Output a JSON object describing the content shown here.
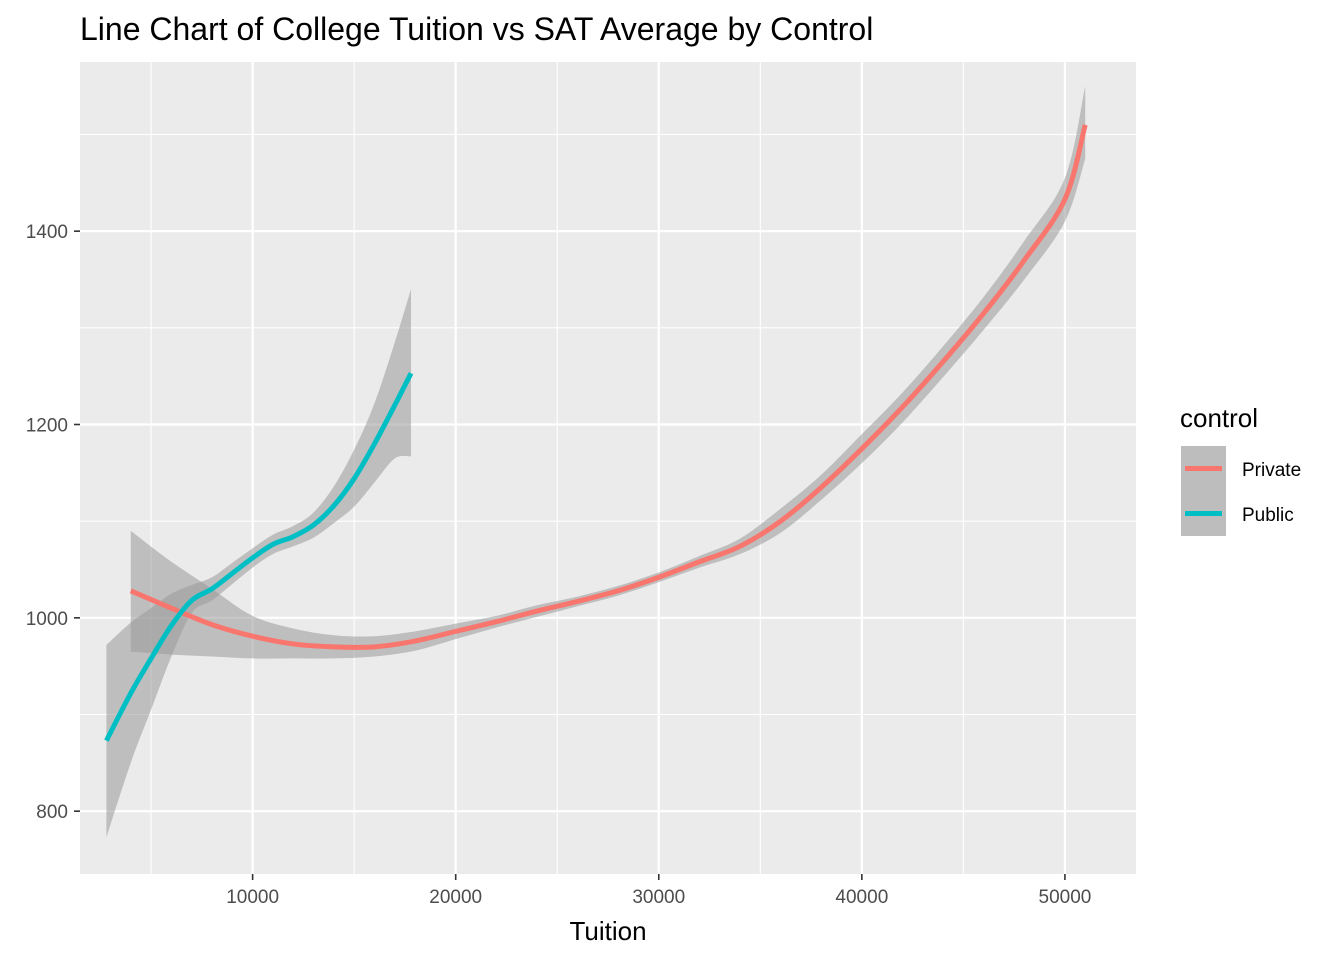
{
  "chart_data": {
    "type": "line",
    "title": "Line Chart of College Tuition vs SAT Average by Control",
    "xlabel": "Tuition",
    "ylabel": "",
    "xlim": [
      1500,
      53500
    ],
    "ylim": [
      735,
      1575
    ],
    "x_ticks": [
      10000,
      20000,
      30000,
      40000,
      50000
    ],
    "x_tick_labels": [
      "10000",
      "20000",
      "30000",
      "40000",
      "50000"
    ],
    "y_ticks": [
      800,
      1000,
      1200,
      1400
    ],
    "y_tick_labels": [
      "800",
      "1000",
      "1200",
      "1400"
    ],
    "grid": true,
    "legend": {
      "title": "control",
      "position": "right"
    },
    "series": [
      {
        "name": "Private",
        "color": "#F8766D",
        "x": [
          4000,
          6000,
          8000,
          10000,
          12000,
          14000,
          16000,
          18000,
          20000,
          22000,
          24000,
          26000,
          28000,
          30000,
          32000,
          34000,
          36000,
          38000,
          40000,
          42000,
          44000,
          46000,
          48000,
          50000,
          51000
        ],
        "y": [
          1028,
          1010,
          993,
          981,
          973,
          970,
          970,
          976,
          986,
          996,
          1007,
          1017,
          1028,
          1042,
          1058,
          1074,
          1100,
          1135,
          1175,
          1218,
          1265,
          1315,
          1370,
          1433,
          1510
        ],
        "lower": [
          965,
          962,
          960,
          958,
          958,
          958,
          960,
          966,
          978,
          990,
          1001,
          1012,
          1023,
          1037,
          1052,
          1066,
          1088,
          1122,
          1160,
          1202,
          1249,
          1298,
          1350,
          1410,
          1475
        ],
        "upper": [
          1090,
          1058,
          1030,
          1002,
          989,
          982,
          981,
          986,
          994,
          1002,
          1013,
          1022,
          1033,
          1047,
          1064,
          1082,
          1113,
          1148,
          1190,
          1233,
          1281,
          1332,
          1390,
          1455,
          1550
        ]
      },
      {
        "name": "Public",
        "color": "#00BFC4",
        "x": [
          2800,
          4000,
          5000,
          6000,
          7000,
          8000,
          9000,
          10000,
          11000,
          12000,
          13000,
          14000,
          15000,
          16000,
          17000,
          17800
        ],
        "y": [
          873,
          922,
          958,
          992,
          1018,
          1030,
          1046,
          1062,
          1076,
          1084,
          1096,
          1116,
          1144,
          1180,
          1220,
          1253
        ],
        "lower": [
          773,
          850,
          905,
          960,
          1005,
          1018,
          1035,
          1052,
          1066,
          1074,
          1083,
          1098,
          1115,
          1140,
          1165,
          1167
        ],
        "upper": [
          972,
          995,
          1010,
          1025,
          1034,
          1042,
          1057,
          1072,
          1086,
          1095,
          1109,
          1136,
          1174,
          1222,
          1285,
          1340
        ]
      }
    ]
  }
}
